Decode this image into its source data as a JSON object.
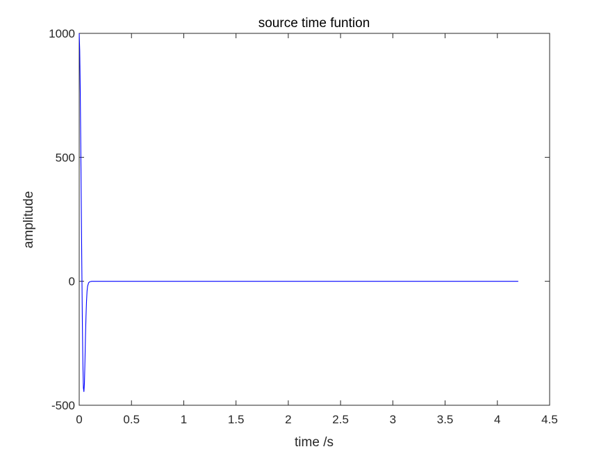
{
  "chart_data": {
    "type": "line",
    "title": "source time funtion",
    "xlabel": "time /s",
    "ylabel": "amplitude",
    "xlim": [
      0,
      4.5
    ],
    "ylim": [
      -500,
      1000
    ],
    "xticks": [
      0,
      0.5,
      1,
      1.5,
      2,
      2.5,
      3,
      3.5,
      4,
      4.5
    ],
    "xtick_labels": [
      "0",
      "0.5",
      "1",
      "1.5",
      "2",
      "2.5",
      "3",
      "3.5",
      "4",
      "4.5"
    ],
    "yticks": [
      -500,
      0,
      500,
      1000
    ],
    "ytick_labels": [
      "-500",
      "0",
      "500",
      "1000"
    ],
    "grid": false,
    "series": [
      {
        "color": "#0000ff",
        "x": [
          0,
          0.005,
          0.01,
          0.015,
          0.02,
          0.025,
          0.03,
          0.035,
          0.04,
          0.045,
          0.05,
          0.055,
          0.06,
          0.065,
          0.07,
          0.075,
          0.08,
          0.09,
          0.1,
          0.12,
          0.15,
          0.2,
          0.5,
          1,
          2,
          3,
          4,
          4.2
        ],
        "y": [
          1000,
          930,
          770,
          550,
          300,
          60,
          -160,
          -330,
          -430,
          -445,
          -410,
          -320,
          -220,
          -140,
          -80,
          -40,
          -20,
          -6,
          -2,
          0,
          0,
          0,
          0,
          0,
          0,
          0,
          0,
          0
        ]
      }
    ]
  }
}
